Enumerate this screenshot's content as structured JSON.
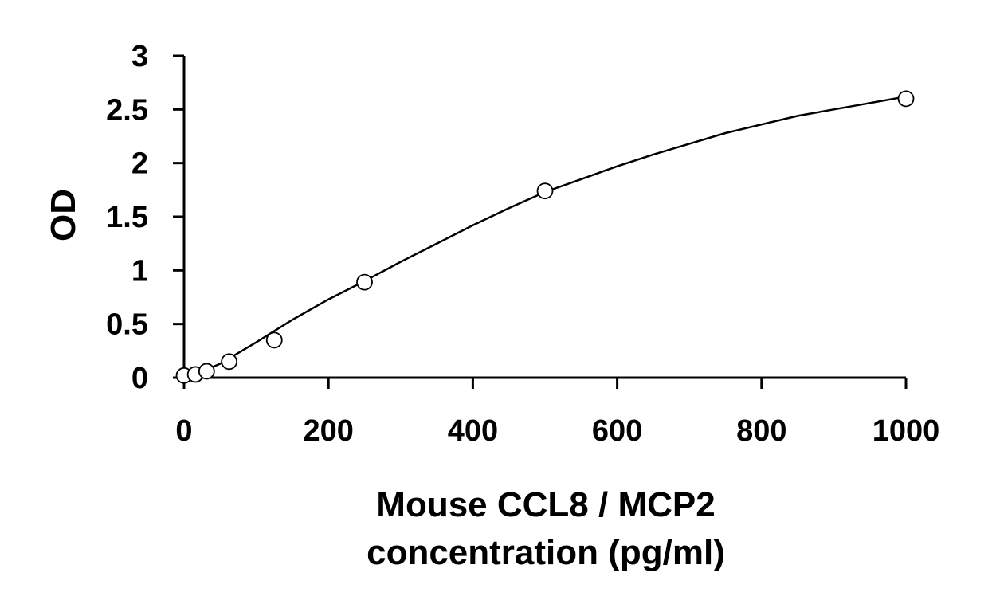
{
  "chart_data": {
    "type": "scatter",
    "xlabel_lines": [
      "Mouse CCL8 / MCP2",
      "concentration (pg/ml)"
    ],
    "ylabel": "OD",
    "xlim": [
      0,
      1000
    ],
    "ylim": [
      0,
      3
    ],
    "x_ticks": [
      0,
      200,
      400,
      600,
      800,
      1000
    ],
    "y_ticks": [
      0,
      0.5,
      1,
      1.5,
      2,
      2.5,
      3
    ],
    "x_tick_labels": [
      "0",
      "200",
      "400",
      "600",
      "800",
      "1000"
    ],
    "y_tick_labels": [
      "0",
      "0.5",
      "1",
      "1.5",
      "2",
      "2.5",
      "3"
    ],
    "grid": false,
    "series": [
      {
        "x": [
          0,
          15.6,
          31.25,
          62.5,
          125,
          250,
          500,
          1000
        ],
        "y": [
          0.02,
          0.03,
          0.06,
          0.15,
          0.35,
          0.89,
          1.74,
          2.6
        ]
      }
    ],
    "fit_curve": {
      "x": [
        15,
        50,
        100,
        150,
        200,
        250,
        300,
        350,
        400,
        450,
        500,
        550,
        600,
        650,
        700,
        750,
        800,
        850,
        900,
        950,
        1000
      ],
      "y": [
        0.03,
        0.13,
        0.33,
        0.54,
        0.73,
        0.9,
        1.08,
        1.25,
        1.42,
        1.58,
        1.73,
        1.85,
        1.97,
        2.08,
        2.18,
        2.28,
        2.36,
        2.44,
        2.5,
        2.56,
        2.62
      ]
    }
  }
}
